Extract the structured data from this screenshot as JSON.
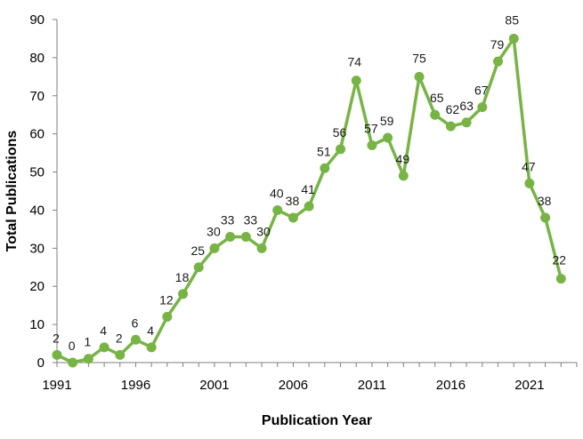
{
  "chart_data": {
    "type": "line",
    "title": "",
    "xlabel": "Publication Year",
    "ylabel": "Total Publications",
    "x": [
      1991,
      1992,
      1993,
      1994,
      1995,
      1996,
      1997,
      1998,
      1999,
      2000,
      2001,
      2002,
      2003,
      2004,
      2005,
      2006,
      2007,
      2008,
      2009,
      2010,
      2011,
      2012,
      2013,
      2014,
      2015,
      2016,
      2017,
      2018,
      2019,
      2020,
      2021,
      2022,
      2023
    ],
    "series": [
      {
        "values": [
          2,
          0,
          1,
          4,
          2,
          6,
          4,
          12,
          18,
          25,
          30,
          33,
          33,
          30,
          40,
          38,
          41,
          51,
          56,
          74,
          57,
          59,
          49,
          75,
          65,
          62,
          63,
          67,
          79,
          85,
          47,
          38,
          22
        ]
      }
    ],
    "data_labels": [
      "2",
      "0",
      "1",
      "4",
      "2",
      "6",
      "4",
      "12",
      "18",
      "25",
      "30",
      "33",
      "33",
      "30",
      "40",
      "38",
      "41",
      "51",
      "56",
      "74",
      "57",
      "59",
      "49",
      "75",
      "65",
      "62",
      "63",
      "67",
      "79",
      "85",
      "47",
      "38",
      "22"
    ],
    "xticks": [
      1991,
      1996,
      2001,
      2006,
      2011,
      2016,
      2021
    ],
    "xtick_labels": [
      "1991",
      "1996",
      "2001",
      "2006",
      "2011",
      "2016",
      "2021"
    ],
    "yticks": [
      0,
      10,
      20,
      30,
      40,
      50,
      60,
      70,
      80,
      90
    ],
    "ytick_labels": [
      "0",
      "10",
      "20",
      "30",
      "40",
      "50",
      "60",
      "70",
      "80",
      "90"
    ],
    "xlim": [
      1991,
      2024
    ],
    "ylim": [
      0,
      90
    ],
    "grid": false,
    "legend": "none",
    "line_color": "#78b445",
    "marker_color": "#78b445",
    "axis_color": "#7f7f7f"
  }
}
